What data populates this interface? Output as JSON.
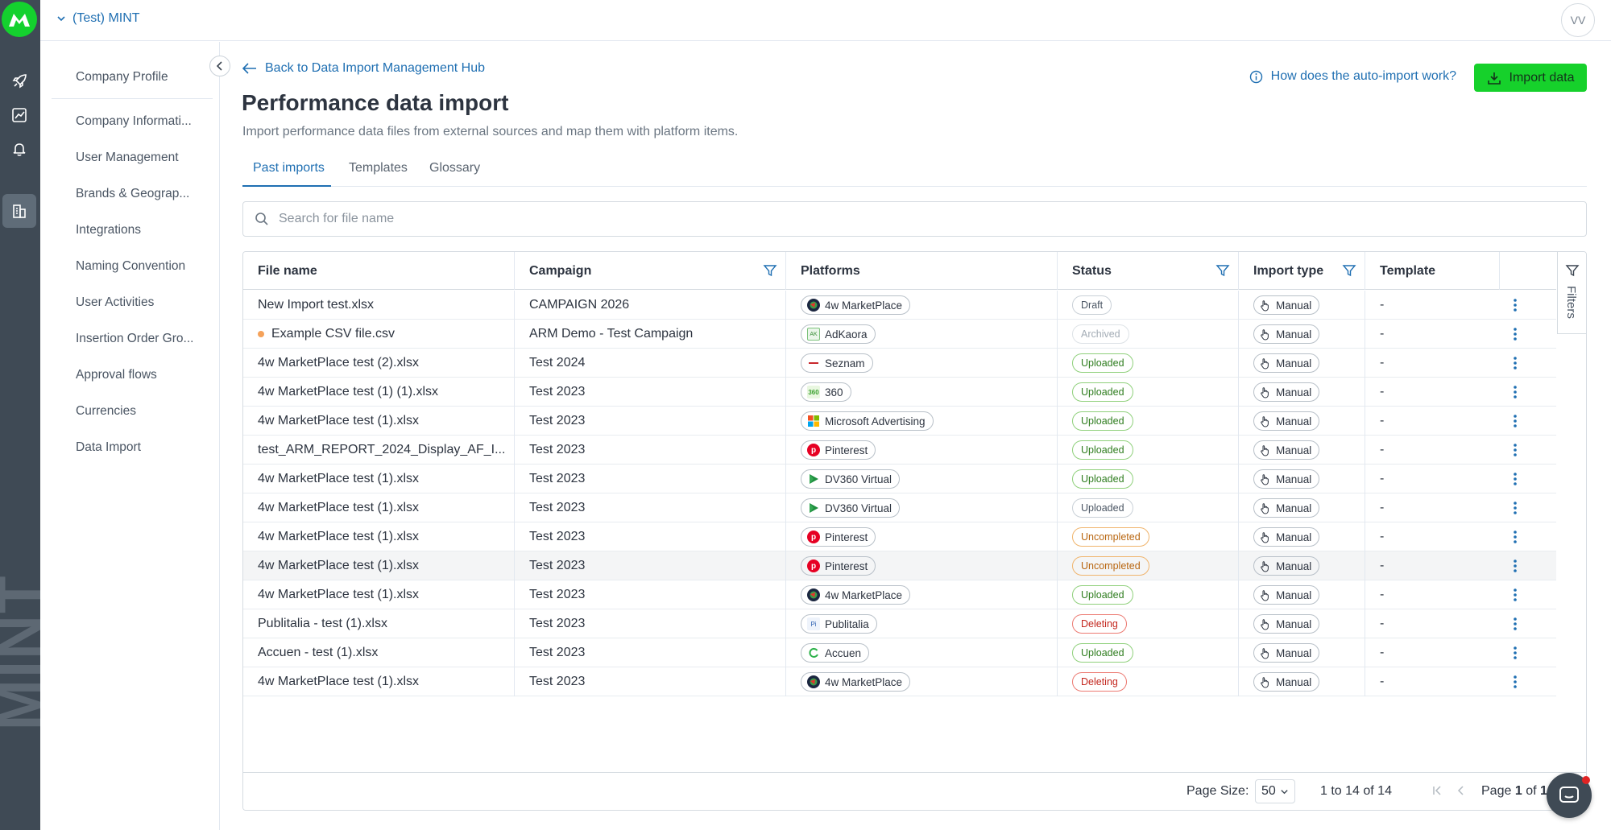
{
  "app": {
    "workspace": "(Test) MINT",
    "user_initials": "VV",
    "watermark": "MINT"
  },
  "colors": {
    "brand_green": "#16d12b",
    "link_blue": "#1f6fb2",
    "rail": "#3f4a55"
  },
  "rail": {
    "icons": [
      "logo-icon",
      "rocket-icon",
      "chart-icon",
      "bell-icon",
      "building-icon"
    ],
    "active": "building-icon"
  },
  "sidebar": {
    "items": [
      {
        "label": "Company Profile"
      },
      {
        "label": "Company Informati..."
      },
      {
        "label": "User Management"
      },
      {
        "label": "Brands & Geograp..."
      },
      {
        "label": "Integrations"
      },
      {
        "label": "Naming Convention"
      },
      {
        "label": "User Activities"
      },
      {
        "label": "Insertion Order Gro..."
      },
      {
        "label": "Approval flows"
      },
      {
        "label": "Currencies"
      },
      {
        "label": "Data Import"
      }
    ]
  },
  "header": {
    "back_label": "Back to Data Import Management Hub",
    "title": "Performance data import",
    "subtitle": "Import performance data files from external sources and map them with platform items.",
    "help_link": "How does the auto-import work?",
    "import_button": "Import data"
  },
  "tabs": [
    {
      "label": "Past imports",
      "active": true
    },
    {
      "label": "Templates",
      "active": false
    },
    {
      "label": "Glossary",
      "active": false
    }
  ],
  "search": {
    "placeholder": "Search for file name",
    "value": ""
  },
  "table": {
    "columns": [
      {
        "label": "File name",
        "filter": false
      },
      {
        "label": "Campaign",
        "filter": true
      },
      {
        "label": "Platforms",
        "filter": false
      },
      {
        "label": "Status",
        "filter": true
      },
      {
        "label": "Import type",
        "filter": true
      },
      {
        "label": "Template",
        "filter": false
      }
    ],
    "rows": [
      {
        "file": "New Import test.xlsx",
        "dot": false,
        "campaign": "CAMPAIGN 2026",
        "platform": "4w MarketPlace",
        "platform_icon": "globe-icon",
        "status": "Draft",
        "import_type": "Manual",
        "template": "-"
      },
      {
        "file": "Example CSV file.csv",
        "dot": true,
        "campaign": "ARM Demo - Test Campaign",
        "platform": "AdKaora",
        "platform_icon": "adkaora-icon",
        "status": "Archived",
        "import_type": "Manual",
        "template": "-"
      },
      {
        "file": "4w MarketPlace test (2).xlsx",
        "dot": false,
        "campaign": "Test 2024",
        "platform": "Seznam",
        "platform_icon": "seznam-icon",
        "status": "Uploaded",
        "import_type": "Manual",
        "template": "-"
      },
      {
        "file": "4w MarketPlace test (1) (1).xlsx",
        "dot": false,
        "campaign": "Test 2023",
        "platform": "360",
        "platform_icon": "three-sixty-icon",
        "status": "Uploaded",
        "import_type": "Manual",
        "template": "-"
      },
      {
        "file": "4w MarketPlace test (1).xlsx",
        "dot": false,
        "campaign": "Test 2023",
        "platform": "Microsoft Advertising",
        "platform_icon": "microsoft-icon",
        "status": "Uploaded",
        "import_type": "Manual",
        "template": "-"
      },
      {
        "file": "test_ARM_REPORT_2024_Display_AF_I...",
        "dot": false,
        "campaign": "Test 2023",
        "platform": "Pinterest",
        "platform_icon": "pinterest-icon",
        "status": "Uploaded",
        "import_type": "Manual",
        "template": "-"
      },
      {
        "file": "4w MarketPlace test (1).xlsx",
        "dot": false,
        "campaign": "Test 2023",
        "platform": "DV360 Virtual",
        "platform_icon": "dv360-icon",
        "status": "Uploaded",
        "import_type": "Manual",
        "template": "-"
      },
      {
        "file": "4w MarketPlace test (1).xlsx",
        "dot": false,
        "campaign": "Test 2023",
        "platform": "DV360 Virtual",
        "platform_icon": "dv360-icon",
        "status": "Uploaded",
        "status_grey": true,
        "import_type": "Manual",
        "template": "-"
      },
      {
        "file": "4w MarketPlace test (1).xlsx",
        "dot": false,
        "campaign": "Test 2023",
        "platform": "Pinterest",
        "platform_icon": "pinterest-icon",
        "status": "Uncompleted",
        "import_type": "Manual",
        "template": "-"
      },
      {
        "file": "4w MarketPlace test (1).xlsx",
        "dot": false,
        "campaign": "Test 2023",
        "platform": "Pinterest",
        "platform_icon": "pinterest-icon",
        "status": "Uncompleted",
        "import_type": "Manual",
        "template": "-",
        "highlighted": true
      },
      {
        "file": "4w MarketPlace test (1).xlsx",
        "dot": false,
        "campaign": "Test 2023",
        "platform": "4w MarketPlace",
        "platform_icon": "globe-icon",
        "status": "Uploaded",
        "import_type": "Manual",
        "template": "-"
      },
      {
        "file": "Publitalia - test (1).xlsx",
        "dot": false,
        "campaign": "Test 2023",
        "platform": "Publitalia",
        "platform_icon": "publitalia-icon",
        "status": "Deleting",
        "import_type": "Manual",
        "template": "-"
      },
      {
        "file": "Accuen - test (1).xlsx",
        "dot": false,
        "campaign": "Test 2023",
        "platform": "Accuen",
        "platform_icon": "accuen-icon",
        "status": "Uploaded",
        "import_type": "Manual",
        "template": "-"
      },
      {
        "file": "4w MarketPlace test (1).xlsx",
        "dot": false,
        "campaign": "Test 2023",
        "platform": "4w MarketPlace",
        "platform_icon": "globe-icon",
        "status": "Deleting",
        "import_type": "Manual",
        "template": "-"
      }
    ],
    "filters_label": "Filters"
  },
  "pagination": {
    "page_size_label": "Page Size:",
    "page_size": "50",
    "range": "1 to 14 of 14",
    "page_prefix": "Page",
    "page": "1",
    "page_of": "of",
    "total_pages": "1"
  }
}
